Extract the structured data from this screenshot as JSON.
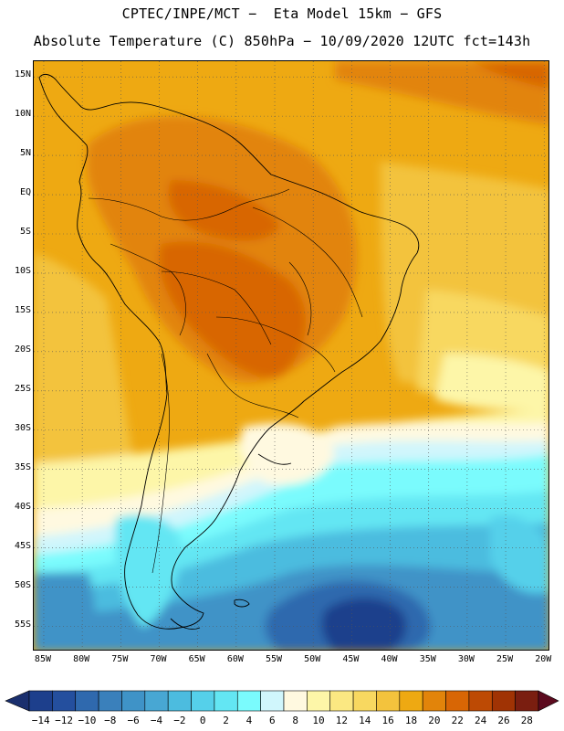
{
  "title": {
    "line1": "CPTEC/INPE/MCT −  Eta Model 15km − GFS",
    "line2": "Absolute Temperature (C) 850hPa − 10/09/2020 12UTC fct=143h"
  },
  "lat_labels": [
    "15N",
    "10N",
    "5N",
    "EQ",
    "5S",
    "10S",
    "15S",
    "20S",
    "25S",
    "30S",
    "35S",
    "40S",
    "45S",
    "50S",
    "55S"
  ],
  "lon_labels": [
    "85W",
    "80W",
    "75W",
    "70W",
    "65W",
    "60W",
    "55W",
    "50W",
    "45W",
    "40W",
    "35W",
    "30W",
    "25W",
    "20W"
  ],
  "colorbar": {
    "labels": [
      "−14",
      "−12",
      "−10",
      "−8",
      "−6",
      "−4",
      "−2",
      "0",
      "2",
      "4",
      "6",
      "8",
      "10",
      "12",
      "14",
      "16",
      "18",
      "20",
      "22",
      "24",
      "26",
      "28"
    ],
    "colors": [
      "#1d3f8c",
      "#244f9e",
      "#2f69ae",
      "#3a80bb",
      "#3f93c7",
      "#48a7d3",
      "#4cbcdf",
      "#55d0ea",
      "#63e6f3",
      "#7afbfd",
      "#d0f6fc",
      "#fff9e0",
      "#fdf6a8",
      "#fbe882",
      "#f8d860",
      "#f3c33d",
      "#eea912",
      "#e2840a",
      "#d86605",
      "#bd4a04",
      "#a03304",
      "#7a1e10"
    ],
    "left_arrow_color": "#1a2f6e",
    "right_arrow_color": "#5c0a1e"
  },
  "map_colors": {
    "ocean_cold": "#1d3f8c",
    "land_hot": "#d86605"
  }
}
